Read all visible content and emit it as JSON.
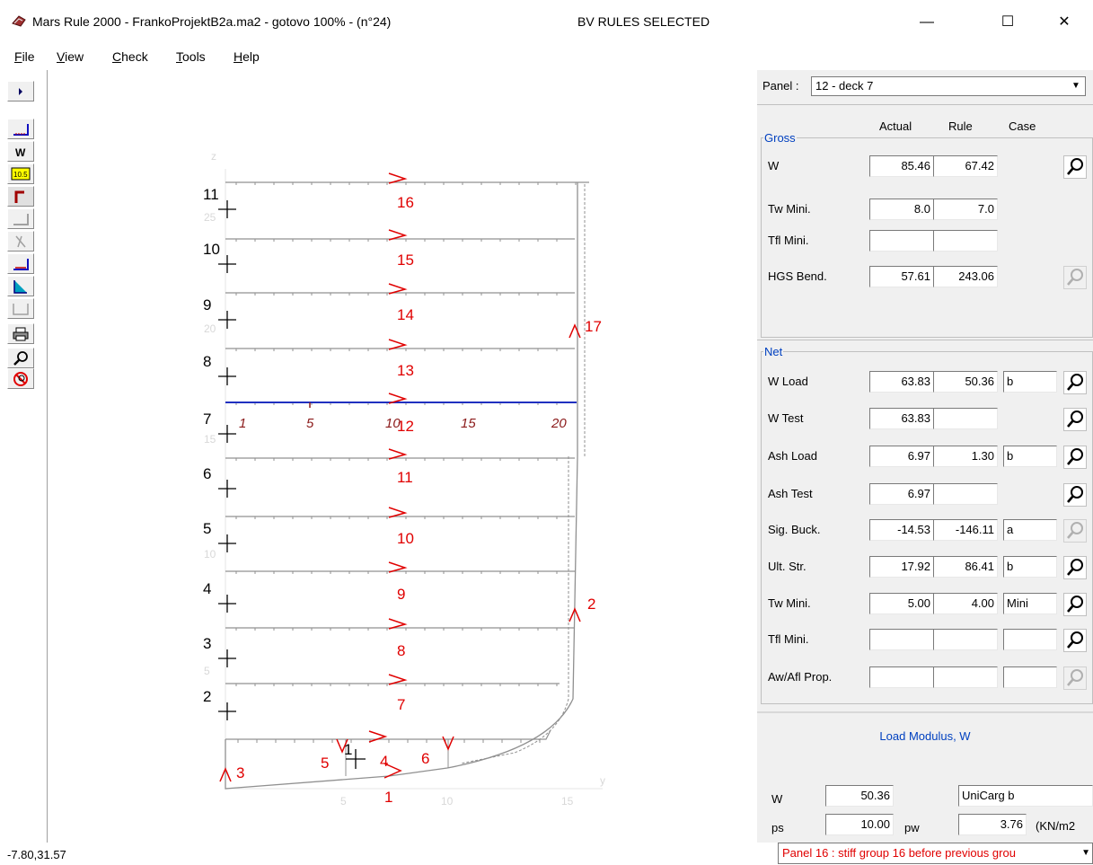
{
  "window": {
    "title": "Mars Rule 2000 - FrankoProjektB2a.ma2 - gotovo 100% - (n°24)",
    "rules_selected": "BV RULES SELECTED",
    "minimize": "—",
    "maximize": "☐",
    "close": "✕"
  },
  "menu": [
    {
      "key": "F",
      "rest": "ile"
    },
    {
      "key": "V",
      "rest": "iew"
    },
    {
      "key": "C",
      "rest": "heck"
    },
    {
      "key": "T",
      "rest": "ools"
    },
    {
      "key": "H",
      "rest": "elp"
    }
  ],
  "toolbar_icons": [
    "arrow-right-icon",
    "panel-view-icon",
    "w-modulus-icon",
    "thickness-icon",
    "stiffener-profile-icon",
    "plate-icon",
    "frame-icon",
    "panel-edit-icon",
    "slope-icon",
    "grid-icon",
    "print-icon",
    "zoom-icon",
    "cancel-icon"
  ],
  "toolbar_texts": {
    "w": "W",
    "thickness": "10.5"
  },
  "panel": {
    "label": "Panel :",
    "selected": "12 - deck 7",
    "headers": {
      "actual": "Actual",
      "rule": "Rule",
      "case": "Case"
    }
  },
  "gross": {
    "legend": "Gross",
    "rows": [
      {
        "label": "W",
        "actual": "85.46",
        "rule": "67.42"
      },
      {
        "label": "Tw Mini.",
        "actual": "8.0",
        "rule": "7.0"
      },
      {
        "label": "Tfl Mini.",
        "actual": "",
        "rule": ""
      },
      {
        "label": "HGS Bend.",
        "actual": "57.61",
        "rule": "243.06"
      }
    ]
  },
  "net": {
    "legend": "Net",
    "rows": [
      {
        "label": "W Load",
        "actual": "63.83",
        "rule": "50.36",
        "case": "b"
      },
      {
        "label": "W Test",
        "actual": "63.83",
        "rule": "",
        "case": null
      },
      {
        "label": "Ash Load",
        "actual": "6.97",
        "rule": "1.30",
        "case": "b"
      },
      {
        "label": "Ash Test",
        "actual": "6.97",
        "rule": "",
        "case": null
      },
      {
        "label": "Sig. Buck.",
        "actual": "-14.53",
        "rule": "-146.11",
        "case": "a"
      },
      {
        "label": "Ult. Str.",
        "actual": "17.92",
        "rule": "86.41",
        "case": "b"
      },
      {
        "label": "Tw Mini.",
        "actual": "5.00",
        "rule": "4.00",
        "case": "Mini"
      },
      {
        "label": "Tfl Mini.",
        "actual": "",
        "rule": "",
        "case": ""
      },
      {
        "label": "Aw/Afl Prop.",
        "actual": "",
        "rule": "",
        "case": ""
      }
    ]
  },
  "load_modulus": {
    "title": "Load Modulus, W",
    "w_label": "W",
    "w_value": "50.36",
    "w_case": "UniCarg b",
    "ps_label": "ps",
    "ps_value": "10.00",
    "pw_label": "pw",
    "pw_value": "3.76",
    "unit": "(KN/m2"
  },
  "status": {
    "coords": "-7.80,31.57",
    "message": "Panel 16 : stiff group 16 before previous grou"
  },
  "drawing": {
    "deck_labels": [
      "2",
      "3",
      "4",
      "5",
      "6",
      "7",
      "8",
      "9",
      "10",
      "11"
    ],
    "panel_labels": [
      "16",
      "15",
      "14",
      "13",
      "12",
      "11",
      "10",
      "9",
      "8",
      "7"
    ],
    "blue_line_labels": [
      "1",
      "5",
      "10",
      "15",
      "20"
    ],
    "bottom_labels": {
      "a1": "1",
      "a3": "3",
      "a4": "4",
      "a5": "5",
      "a6": "6",
      "keel": "1"
    },
    "side_labels": [
      "17",
      "2"
    ],
    "axis_x": [
      "5",
      "10",
      "15"
    ],
    "axis_y": [
      "5",
      "10",
      "15",
      "20",
      "25"
    ],
    "axis_names": {
      "z": "z",
      "y": "y"
    }
  }
}
